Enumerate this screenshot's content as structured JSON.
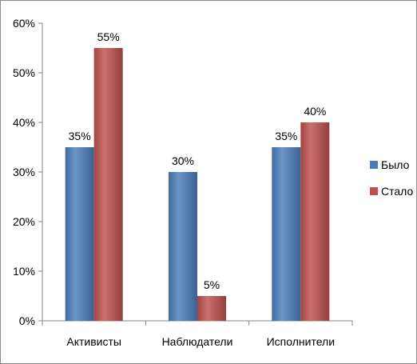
{
  "chart_data": {
    "type": "bar",
    "title": "",
    "xlabel": "",
    "ylabel": "",
    "categories": [
      "Активисты",
      "Наблюдатели",
      "Исполнители"
    ],
    "series": [
      {
        "name": "Было",
        "values": [
          35,
          30,
          35
        ],
        "color": "#4a7ebb"
      },
      {
        "name": "Стало",
        "values": [
          55,
          5,
          40
        ],
        "color": "#c0504d"
      }
    ],
    "data_labels": [
      [
        "35%",
        "30%",
        "35%"
      ],
      [
        "55%",
        "5%",
        "40%"
      ]
    ],
    "ylim": [
      0,
      60
    ],
    "yticks": [
      0,
      10,
      20,
      30,
      40,
      50,
      60
    ],
    "ytick_labels": [
      "0%",
      "10%",
      "20%",
      "30%",
      "40%",
      "50%",
      "60%"
    ],
    "grid": false,
    "legend_position": "right"
  }
}
